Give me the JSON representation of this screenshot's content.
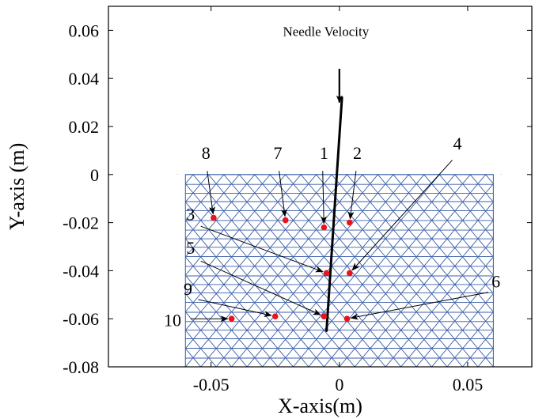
{
  "chart_data": {
    "type": "scatter",
    "title": "",
    "xlabel": "X-axis(m)",
    "ylabel": "Y-axis (m)",
    "xlim": [
      -0.09,
      0.075
    ],
    "ylim": [
      -0.08,
      0.07
    ],
    "xticks": [
      {
        "value": -0.05,
        "label": "-0.05"
      },
      {
        "value": 0,
        "label": "0"
      },
      {
        "value": 0.05,
        "label": "0.05"
      }
    ],
    "yticks": [
      {
        "value": 0.06,
        "label": "0.06"
      },
      {
        "value": 0.04,
        "label": "0.04"
      },
      {
        "value": 0.02,
        "label": "0.02"
      },
      {
        "value": 0,
        "label": "0"
      },
      {
        "value": -0.02,
        "label": "-0.02"
      },
      {
        "value": -0.04,
        "label": "-0.04"
      },
      {
        "value": -0.06,
        "label": "-0.06"
      },
      {
        "value": -0.08,
        "label": "-0.08"
      }
    ],
    "mesh": {
      "x_range": [
        -0.06,
        0.06
      ],
      "y_range": [
        -0.08,
        0
      ],
      "color": "#3b5fa8"
    },
    "points": [
      {
        "label": "1",
        "x": -0.006,
        "y": -0.022,
        "label_x": -0.006,
        "label_y": 0.0065,
        "arrow_from_x": -0.0065,
        "arrow_from_y": 0.0015
      },
      {
        "label": "2",
        "x": 0.004,
        "y": -0.02,
        "label_x": 0.007,
        "label_y": 0.0065,
        "arrow_from_x": 0.0065,
        "arrow_from_y": 0.0015
      },
      {
        "label": "3",
        "x": -0.005,
        "y": -0.041,
        "label_x": -0.058,
        "label_y": -0.019,
        "arrow_from_x": -0.054,
        "arrow_from_y": -0.0215
      },
      {
        "label": "4",
        "x": 0.004,
        "y": -0.041,
        "label_x": 0.046,
        "label_y": 0.0105,
        "arrow_from_x": 0.044,
        "arrow_from_y": 0.006
      },
      {
        "label": "5",
        "x": -0.006,
        "y": -0.059,
        "label_x": -0.058,
        "label_y": -0.033,
        "arrow_from_x": -0.054,
        "arrow_from_y": -0.036
      },
      {
        "label": "6",
        "x": 0.003,
        "y": -0.06,
        "label_x": 0.061,
        "label_y": -0.047,
        "arrow_from_x": 0.058,
        "arrow_from_y": -0.049
      },
      {
        "label": "7",
        "x": -0.021,
        "y": -0.019,
        "label_x": -0.024,
        "label_y": 0.0065,
        "arrow_from_x": -0.0235,
        "arrow_from_y": 0.0015
      },
      {
        "label": "8",
        "x": -0.049,
        "y": -0.018,
        "label_x": -0.052,
        "label_y": 0.0065,
        "arrow_from_x": -0.0515,
        "arrow_from_y": 0.0015
      },
      {
        "label": "9",
        "x": -0.025,
        "y": -0.059,
        "label_x": -0.059,
        "label_y": -0.05,
        "arrow_from_x": -0.055,
        "arrow_from_y": -0.052
      },
      {
        "label": "10",
        "x": -0.042,
        "y": -0.06,
        "label_x": -0.065,
        "label_y": -0.063,
        "arrow_from_x": -0.058,
        "arrow_from_y": -0.06
      }
    ],
    "needle": {
      "label": "Needle Velocity",
      "label_x": -0.022,
      "label_y": 0.0577,
      "arrow_start": [
        0.0,
        0.044
      ],
      "arrow_end": [
        0.0,
        0.03
      ],
      "path": [
        [
          0.001,
          0.032
        ],
        [
          -0.001,
          0.0
        ],
        [
          -0.005,
          -0.065
        ]
      ]
    },
    "point_color": "#e8141b",
    "grid": false
  }
}
